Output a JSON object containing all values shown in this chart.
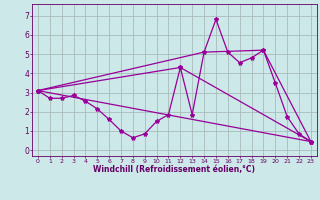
{
  "title": "",
  "xlabel": "Windchill (Refroidissement éolien,°C)",
  "bg_color": "#cce8e8",
  "grid_color": "#aabbbb",
  "line_color": "#990099",
  "x_ticks": [
    0,
    1,
    2,
    3,
    4,
    5,
    6,
    7,
    8,
    9,
    10,
    11,
    12,
    13,
    14,
    15,
    16,
    17,
    18,
    19,
    20,
    21,
    22,
    23
  ],
  "y_ticks": [
    0,
    1,
    2,
    3,
    4,
    5,
    6,
    7
  ],
  "ylim": [
    -0.3,
    7.6
  ],
  "xlim": [
    -0.5,
    23.5
  ],
  "line1_x": [
    0,
    1,
    2,
    3,
    4,
    5,
    6,
    7,
    8,
    9,
    10,
    11,
    12,
    13,
    14,
    15,
    16,
    17,
    18,
    19,
    20,
    21,
    22,
    23
  ],
  "line1_y": [
    3.1,
    2.7,
    2.7,
    2.85,
    2.55,
    2.15,
    1.6,
    1.0,
    0.65,
    0.85,
    1.5,
    1.85,
    4.3,
    1.85,
    5.1,
    6.8,
    5.1,
    4.55,
    4.8,
    5.2,
    3.5,
    1.75,
    0.85,
    0.45
  ],
  "line2_x": [
    0,
    23
  ],
  "line2_y": [
    3.1,
    0.45
  ],
  "line3_x": [
    0,
    12,
    23
  ],
  "line3_y": [
    3.1,
    4.3,
    0.45
  ],
  "line4_x": [
    0,
    14,
    19,
    23
  ],
  "line4_y": [
    3.1,
    5.1,
    5.2,
    0.45
  ]
}
